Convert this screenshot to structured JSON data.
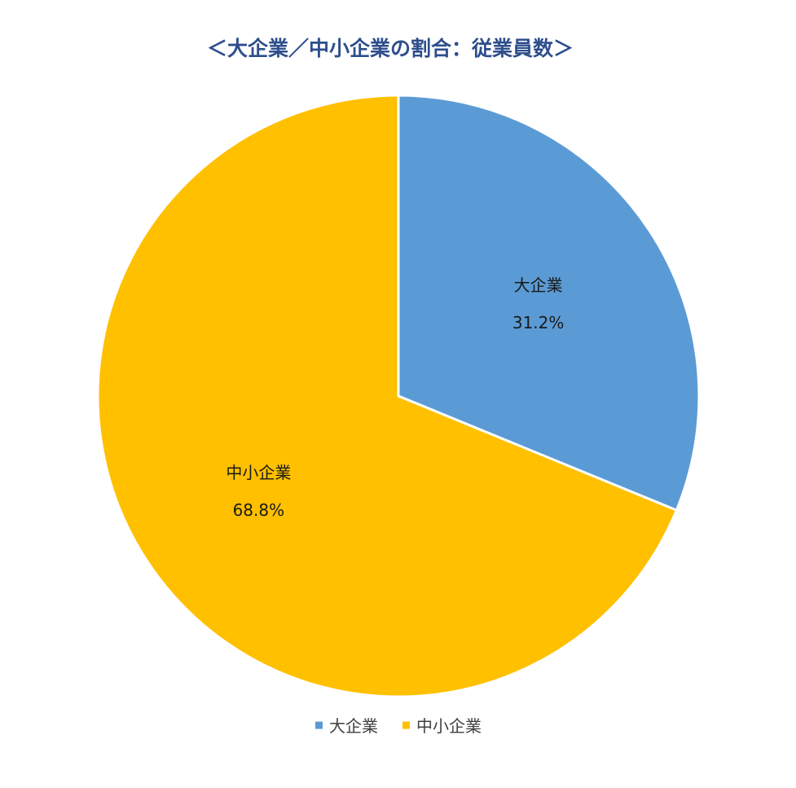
{
  "chart_data": {
    "type": "pie",
    "title": "＜大企業／中小企業の割合：従業員数＞",
    "series": [
      {
        "name": "従業員数",
        "slices": [
          {
            "label": "大企業",
            "value": 31.2,
            "display": "31.2%",
            "color": "#5b9bd5"
          },
          {
            "label": "中小企業",
            "value": 68.8,
            "display": "68.8%",
            "color": "#ffc000"
          }
        ]
      }
    ],
    "legend": {
      "position": "bottom",
      "items": [
        "大企業",
        "中小企業"
      ]
    },
    "start_angle": "12 o'clock",
    "direction": "clockwise",
    "colors": {
      "title": "#2e4e8c",
      "slice_border": "#ffffff",
      "label_text": "#1a1a1a",
      "legend_text": "#404040"
    }
  }
}
